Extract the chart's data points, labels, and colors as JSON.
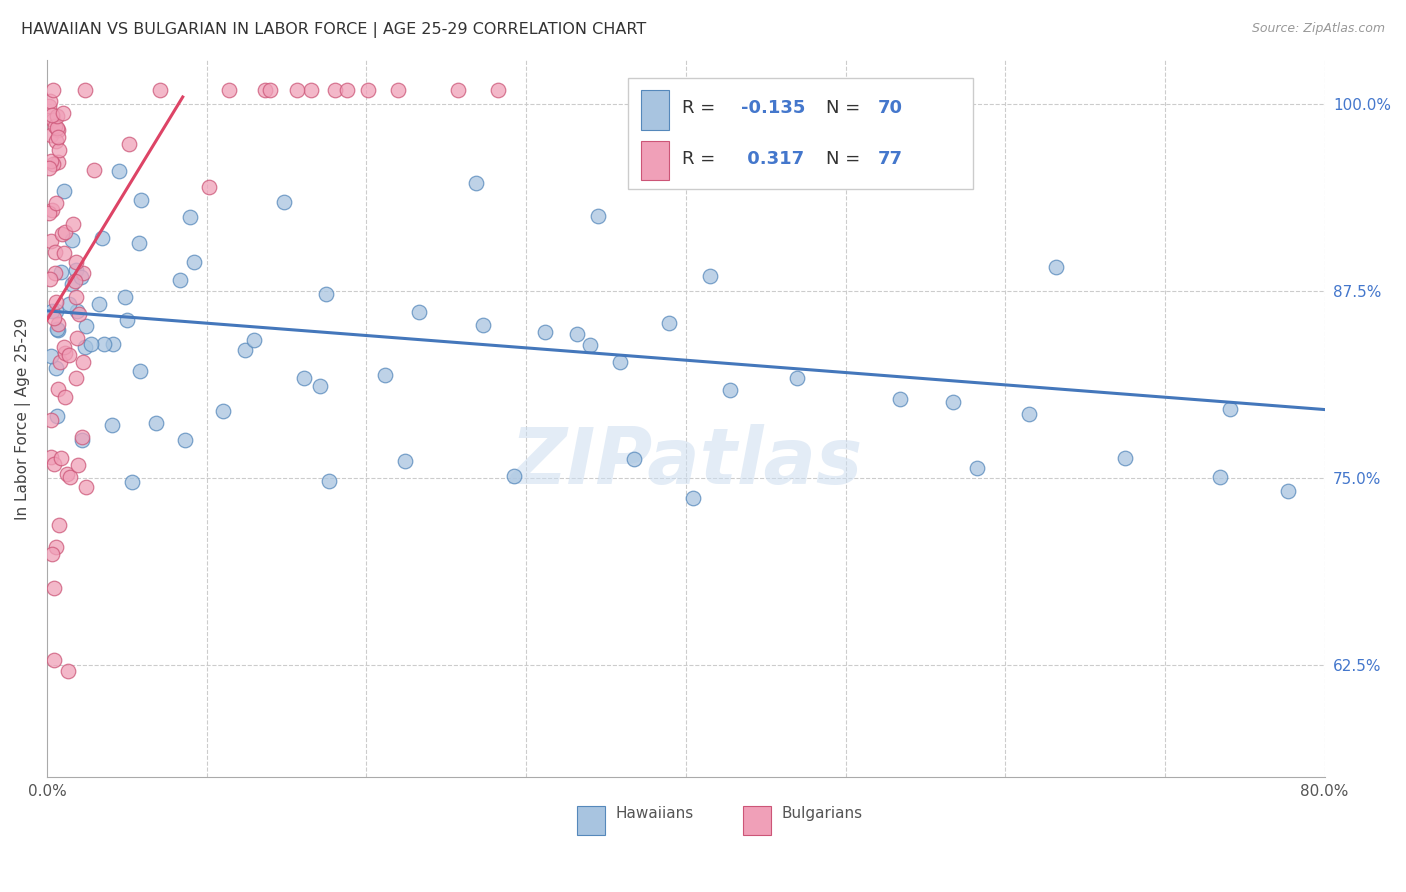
{
  "title": "HAWAIIAN VS BULGARIAN IN LABOR FORCE | AGE 25-29 CORRELATION CHART",
  "source": "Source: ZipAtlas.com",
  "ylabel": "In Labor Force | Age 25-29",
  "xlim": [
    0.0,
    0.8
  ],
  "ylim": [
    0.55,
    1.03
  ],
  "ytick_vals": [
    0.625,
    0.75,
    0.875,
    1.0
  ],
  "ytick_labels": [
    "62.5%",
    "75.0%",
    "87.5%",
    "100.0%"
  ],
  "xtick_vals": [
    0.0,
    0.1,
    0.2,
    0.3,
    0.4,
    0.5,
    0.6,
    0.7,
    0.8
  ],
  "xtick_labels": [
    "0.0%",
    "",
    "",
    "",
    "",
    "",
    "",
    "",
    "80.0%"
  ],
  "blue_face": "#a8c4e0",
  "blue_edge": "#5588bb",
  "pink_face": "#f0a0b8",
  "pink_edge": "#cc5577",
  "blue_line": "#4477bb",
  "pink_line": "#dd4466",
  "legend_r_blue": "-0.135",
  "legend_n_blue": "70",
  "legend_r_pink": "0.317",
  "legend_n_pink": "77",
  "watermark": "ZIPatlas",
  "grid_color": "#cccccc",
  "blue_trend_x": [
    0.0,
    0.8
  ],
  "blue_trend_y": [
    0.862,
    0.796
  ],
  "pink_trend_x": [
    0.0,
    0.085
  ],
  "pink_trend_y": [
    0.856,
    1.005
  ]
}
